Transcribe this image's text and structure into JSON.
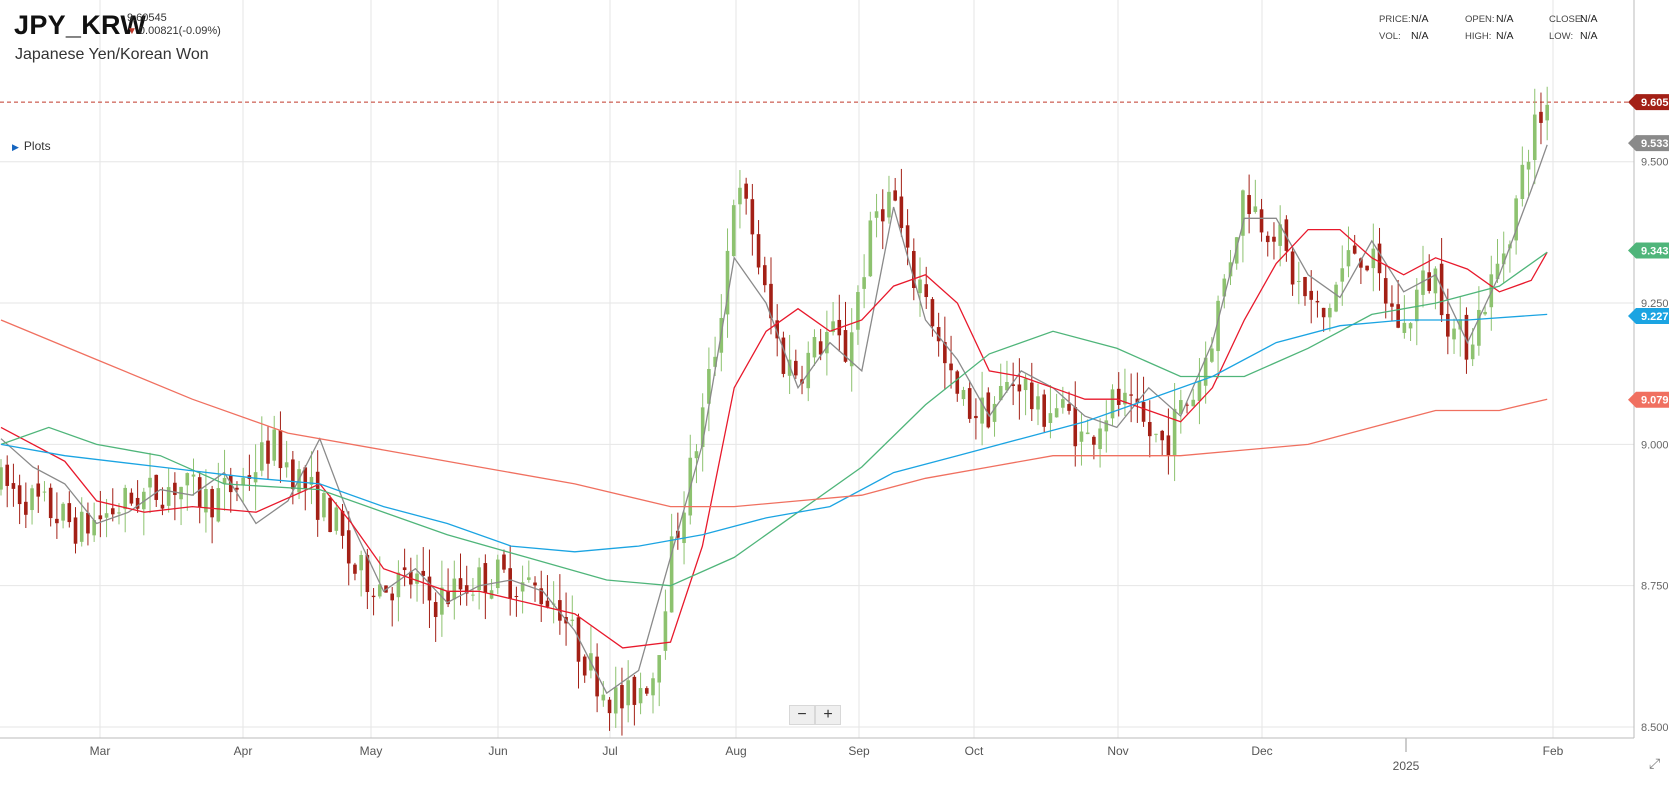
{
  "header": {
    "symbol": "JPY_KRW",
    "last_price": "9.60545",
    "change": "0.00821(-0.09%)",
    "name": "Japanese Yen/Korean Won",
    "direction_icon": "down-arrow-icon"
  },
  "stats": [
    {
      "label": "PRICE:",
      "value": "N/A"
    },
    {
      "label": "OPEN:",
      "value": "N/A"
    },
    {
      "label": "CLOSE:",
      "value": "N/A"
    },
    {
      "label": "VOL:",
      "value": "N/A"
    },
    {
      "label": "HIGH:",
      "value": "N/A"
    },
    {
      "label": "LOW:",
      "value": "N/A"
    }
  ],
  "plots_toggle": {
    "label": "Plots",
    "icon": "triangle-right-icon"
  },
  "zoom": {
    "out_label": "−",
    "in_label": "+"
  },
  "colors": {
    "up": "#8dc26f",
    "down": "#a32016",
    "grid": "#e6e6e6",
    "price_line": "#c0392b",
    "ma_gray": "#8a8a8a",
    "ma_red": "#e8192c",
    "ma_green": "#4fb57a",
    "ma_blue": "#1ba4e2",
    "ma_salmon": "#f07060"
  },
  "chart_data": {
    "type": "candlestick",
    "title": "JPY_KRW",
    "subtitle": "Japanese Yen/Korean Won",
    "period": "daily",
    "ylim": [
      8.5,
      9.68
    ],
    "y_ticks": [
      "9.500",
      "9.250",
      "9.000",
      "8.750",
      "8.500"
    ],
    "x_ticks": [
      "Mar",
      "Apr",
      "May",
      "Jun",
      "Jul",
      "Aug",
      "Sep",
      "Oct",
      "Nov",
      "Dec",
      "2025",
      "Feb"
    ],
    "current_price": 9.60545,
    "price_badges": [
      {
        "label": "9.605",
        "series": "price"
      },
      {
        "label": "9.533",
        "series": "ma_short"
      },
      {
        "label": "9.343",
        "series": "ma_50"
      },
      {
        "label": "9.227",
        "series": "ma_100"
      },
      {
        "label": "9.079",
        "series": "ma_200"
      }
    ],
    "series": [
      {
        "id": "ma_short",
        "color_key": "ma_gray",
        "points": [
          [
            0,
            9.01
          ],
          [
            0.02,
            8.96
          ],
          [
            0.04,
            8.93
          ],
          [
            0.06,
            8.86
          ],
          [
            0.08,
            8.88
          ],
          [
            0.1,
            8.92
          ],
          [
            0.12,
            8.91
          ],
          [
            0.14,
            8.95
          ],
          [
            0.16,
            8.86
          ],
          [
            0.18,
            8.9
          ],
          [
            0.2,
            9.01
          ],
          [
            0.22,
            8.86
          ],
          [
            0.24,
            8.74
          ],
          [
            0.26,
            8.78
          ],
          [
            0.28,
            8.72
          ],
          [
            0.3,
            8.75
          ],
          [
            0.32,
            8.76
          ],
          [
            0.34,
            8.74
          ],
          [
            0.36,
            8.67
          ],
          [
            0.38,
            8.56
          ],
          [
            0.4,
            8.6
          ],
          [
            0.42,
            8.8
          ],
          [
            0.44,
            9.0
          ],
          [
            0.46,
            9.33
          ],
          [
            0.48,
            9.25
          ],
          [
            0.5,
            9.1
          ],
          [
            0.52,
            9.18
          ],
          [
            0.54,
            9.13
          ],
          [
            0.56,
            9.42
          ],
          [
            0.58,
            9.22
          ],
          [
            0.6,
            9.15
          ],
          [
            0.62,
            9.05
          ],
          [
            0.64,
            9.13
          ],
          [
            0.66,
            9.1
          ],
          [
            0.68,
            9.05
          ],
          [
            0.7,
            9.03
          ],
          [
            0.72,
            9.1
          ],
          [
            0.74,
            9.05
          ],
          [
            0.76,
            9.18
          ],
          [
            0.78,
            9.4
          ],
          [
            0.8,
            9.4
          ],
          [
            0.82,
            9.3
          ],
          [
            0.84,
            9.26
          ],
          [
            0.86,
            9.36
          ],
          [
            0.88,
            9.27
          ],
          [
            0.9,
            9.3
          ],
          [
            0.92,
            9.18
          ],
          [
            0.94,
            9.3
          ],
          [
            0.96,
            9.45
          ],
          [
            0.97,
            9.53
          ]
        ]
      },
      {
        "id": "ma_20",
        "color_key": "ma_red",
        "points": [
          [
            0,
            9.03
          ],
          [
            0.04,
            8.97
          ],
          [
            0.06,
            8.9
          ],
          [
            0.09,
            8.88
          ],
          [
            0.12,
            8.89
          ],
          [
            0.16,
            8.88
          ],
          [
            0.2,
            8.93
          ],
          [
            0.22,
            8.86
          ],
          [
            0.24,
            8.78
          ],
          [
            0.26,
            8.76
          ],
          [
            0.28,
            8.74
          ],
          [
            0.3,
            8.74
          ],
          [
            0.33,
            8.72
          ],
          [
            0.36,
            8.7
          ],
          [
            0.39,
            8.64
          ],
          [
            0.42,
            8.65
          ],
          [
            0.44,
            8.82
          ],
          [
            0.46,
            9.1
          ],
          [
            0.48,
            9.2
          ],
          [
            0.5,
            9.24
          ],
          [
            0.52,
            9.2
          ],
          [
            0.54,
            9.22
          ],
          [
            0.56,
            9.28
          ],
          [
            0.58,
            9.3
          ],
          [
            0.6,
            9.25
          ],
          [
            0.62,
            9.13
          ],
          [
            0.64,
            9.12
          ],
          [
            0.66,
            9.1
          ],
          [
            0.68,
            9.08
          ],
          [
            0.7,
            9.08
          ],
          [
            0.72,
            9.06
          ],
          [
            0.74,
            9.04
          ],
          [
            0.76,
            9.1
          ],
          [
            0.78,
            9.22
          ],
          [
            0.8,
            9.32
          ],
          [
            0.82,
            9.38
          ],
          [
            0.84,
            9.38
          ],
          [
            0.86,
            9.33
          ],
          [
            0.88,
            9.3
          ],
          [
            0.9,
            9.33
          ],
          [
            0.92,
            9.31
          ],
          [
            0.94,
            9.27
          ],
          [
            0.96,
            9.29
          ],
          [
            0.97,
            9.34
          ]
        ]
      },
      {
        "id": "ma_50",
        "color_key": "ma_green",
        "points": [
          [
            0,
            9.0
          ],
          [
            0.03,
            9.03
          ],
          [
            0.06,
            9.0
          ],
          [
            0.1,
            8.98
          ],
          [
            0.14,
            8.93
          ],
          [
            0.2,
            8.92
          ],
          [
            0.24,
            8.88
          ],
          [
            0.28,
            8.84
          ],
          [
            0.33,
            8.8
          ],
          [
            0.38,
            8.76
          ],
          [
            0.42,
            8.75
          ],
          [
            0.46,
            8.8
          ],
          [
            0.5,
            8.88
          ],
          [
            0.54,
            8.96
          ],
          [
            0.58,
            9.07
          ],
          [
            0.62,
            9.16
          ],
          [
            0.66,
            9.2
          ],
          [
            0.7,
            9.17
          ],
          [
            0.74,
            9.12
          ],
          [
            0.78,
            9.12
          ],
          [
            0.82,
            9.17
          ],
          [
            0.86,
            9.23
          ],
          [
            0.9,
            9.25
          ],
          [
            0.94,
            9.28
          ],
          [
            0.97,
            9.34
          ]
        ]
      },
      {
        "id": "ma_100",
        "color_key": "ma_blue",
        "points": [
          [
            0,
            9.0
          ],
          [
            0.04,
            8.98
          ],
          [
            0.1,
            8.96
          ],
          [
            0.16,
            8.94
          ],
          [
            0.2,
            8.93
          ],
          [
            0.24,
            8.89
          ],
          [
            0.28,
            8.86
          ],
          [
            0.32,
            8.82
          ],
          [
            0.36,
            8.81
          ],
          [
            0.4,
            8.82
          ],
          [
            0.44,
            8.84
          ],
          [
            0.48,
            8.87
          ],
          [
            0.52,
            8.89
          ],
          [
            0.56,
            8.95
          ],
          [
            0.6,
            8.98
          ],
          [
            0.64,
            9.01
          ],
          [
            0.68,
            9.04
          ],
          [
            0.72,
            9.08
          ],
          [
            0.76,
            9.12
          ],
          [
            0.8,
            9.18
          ],
          [
            0.84,
            9.21
          ],
          [
            0.88,
            9.22
          ],
          [
            0.92,
            9.22
          ],
          [
            0.97,
            9.23
          ]
        ]
      },
      {
        "id": "ma_200",
        "color_key": "ma_salmon",
        "points": [
          [
            0,
            9.22
          ],
          [
            0.06,
            9.15
          ],
          [
            0.12,
            9.08
          ],
          [
            0.18,
            9.02
          ],
          [
            0.24,
            8.99
          ],
          [
            0.3,
            8.96
          ],
          [
            0.36,
            8.93
          ],
          [
            0.42,
            8.89
          ],
          [
            0.46,
            8.89
          ],
          [
            0.5,
            8.9
          ],
          [
            0.54,
            8.91
          ],
          [
            0.58,
            8.94
          ],
          [
            0.62,
            8.96
          ],
          [
            0.66,
            8.98
          ],
          [
            0.7,
            8.98
          ],
          [
            0.74,
            8.98
          ],
          [
            0.78,
            8.99
          ],
          [
            0.82,
            9.0
          ],
          [
            0.86,
            9.03
          ],
          [
            0.9,
            9.06
          ],
          [
            0.94,
            9.06
          ],
          [
            0.97,
            9.08
          ]
        ]
      }
    ],
    "candle_anchors": [
      [
        0,
        8.93
      ],
      [
        0.02,
        8.9
      ],
      [
        0.05,
        8.85
      ],
      [
        0.08,
        8.9
      ],
      [
        0.11,
        8.93
      ],
      [
        0.13,
        8.9
      ],
      [
        0.15,
        8.93
      ],
      [
        0.17,
        9.0
      ],
      [
        0.19,
        8.93
      ],
      [
        0.21,
        8.86
      ],
      [
        0.22,
        8.78
      ],
      [
        0.24,
        8.75
      ],
      [
        0.26,
        8.76
      ],
      [
        0.27,
        8.72
      ],
      [
        0.29,
        8.75
      ],
      [
        0.31,
        8.77
      ],
      [
        0.33,
        8.75
      ],
      [
        0.35,
        8.72
      ],
      [
        0.36,
        8.65
      ],
      [
        0.38,
        8.56
      ],
      [
        0.39,
        8.54
      ],
      [
        0.41,
        8.6
      ],
      [
        0.42,
        8.8
      ],
      [
        0.43,
        8.92
      ],
      [
        0.44,
        9.05
      ],
      [
        0.45,
        9.2
      ],
      [
        0.46,
        9.45
      ],
      [
        0.47,
        9.4
      ],
      [
        0.48,
        9.25
      ],
      [
        0.49,
        9.15
      ],
      [
        0.5,
        9.13
      ],
      [
        0.52,
        9.2
      ],
      [
        0.53,
        9.16
      ],
      [
        0.54,
        9.3
      ],
      [
        0.55,
        9.42
      ],
      [
        0.56,
        9.44
      ],
      [
        0.57,
        9.3
      ],
      [
        0.58,
        9.28
      ],
      [
        0.59,
        9.15
      ],
      [
        0.6,
        9.08
      ],
      [
        0.61,
        9.06
      ],
      [
        0.62,
        9.06
      ],
      [
        0.63,
        9.1
      ],
      [
        0.64,
        9.12
      ],
      [
        0.65,
        9.05
      ],
      [
        0.66,
        9.07
      ],
      [
        0.67,
        9.05
      ],
      [
        0.68,
        9.0
      ],
      [
        0.69,
        9.05
      ],
      [
        0.7,
        9.08
      ],
      [
        0.71,
        9.05
      ],
      [
        0.72,
        9.02
      ],
      [
        0.73,
        9.0
      ],
      [
        0.74,
        9.06
      ],
      [
        0.75,
        9.1
      ],
      [
        0.76,
        9.2
      ],
      [
        0.77,
        9.32
      ],
      [
        0.78,
        9.45
      ],
      [
        0.79,
        9.4
      ],
      [
        0.8,
        9.38
      ],
      [
        0.81,
        9.3
      ],
      [
        0.82,
        9.25
      ],
      [
        0.83,
        9.22
      ],
      [
        0.84,
        9.3
      ],
      [
        0.85,
        9.35
      ],
      [
        0.86,
        9.32
      ],
      [
        0.87,
        9.25
      ],
      [
        0.88,
        9.2
      ],
      [
        0.89,
        9.28
      ],
      [
        0.9,
        9.3
      ],
      [
        0.91,
        9.2
      ],
      [
        0.92,
        9.18
      ],
      [
        0.93,
        9.25
      ],
      [
        0.94,
        9.32
      ],
      [
        0.95,
        9.42
      ],
      [
        0.96,
        9.55
      ],
      [
        0.97,
        9.6
      ]
    ]
  }
}
